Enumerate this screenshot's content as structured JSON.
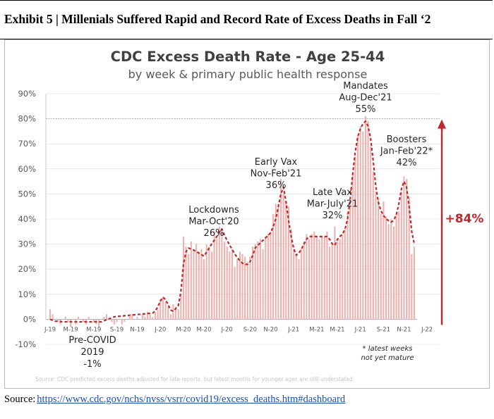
{
  "exhibit": {
    "title": "Exhibit 5 | Millenials Suffered Rapid and Record Rate of Excess Deaths in Fall ‘2"
  },
  "source": {
    "label": "Source:",
    "link_text": "https://www.cdc.gov/nchs/nvss/vsrr/covid19/excess_deaths.htm#dashboard"
  },
  "chart_data": {
    "type": "bar",
    "title": "CDC Excess Death Rate - Age 25-44",
    "subtitle": "by week & primary public health response",
    "ylim": [
      -10,
      90
    ],
    "yticks": [
      -10,
      0,
      10,
      20,
      30,
      40,
      50,
      60,
      70,
      80,
      90
    ],
    "ytick_format": "percent",
    "xtick_labels": [
      "J-19",
      "M-19",
      "M-19",
      "S-19",
      "N-19",
      "J-20",
      "M-20",
      "M-20",
      "J-20",
      "S-20",
      "N-20",
      "J-21",
      "M-21",
      "M-21",
      "J-21",
      "S-21",
      "N-21",
      "J-22"
    ],
    "xtick_weeks": [
      0,
      8,
      17,
      26,
      34,
      43,
      52,
      60,
      69,
      78,
      86,
      95,
      104,
      112,
      121,
      130,
      138,
      147
    ],
    "series": [
      {
        "name": "Weekly excess death rate (%)",
        "style": "bars",
        "values": [
          4,
          2,
          0,
          -1,
          -2,
          0,
          1,
          -1,
          -3,
          0,
          -2,
          1,
          0,
          -1,
          -2,
          1,
          0,
          -1,
          -2,
          -3,
          0,
          1,
          2,
          0,
          -1,
          -2,
          -1,
          0,
          -2,
          -1,
          0,
          1,
          2,
          0,
          1,
          0,
          2,
          1,
          3,
          2,
          1,
          3,
          4,
          8,
          9,
          7,
          5,
          2,
          6,
          5,
          4,
          10,
          33,
          29,
          26,
          31,
          28,
          30,
          27,
          28,
          24,
          30,
          29,
          27,
          35,
          32,
          37,
          36,
          31,
          29,
          27,
          28,
          21,
          24,
          27,
          26,
          25,
          23,
          25,
          29,
          30,
          31,
          32,
          28,
          33,
          34,
          35,
          42,
          46,
          46,
          56,
          50,
          47,
          45,
          36,
          28,
          26,
          24,
          28,
          31,
          34,
          32,
          34,
          35,
          33,
          32,
          33,
          33,
          35,
          29,
          30,
          37,
          31,
          32,
          34,
          36,
          43,
          46,
          58,
          65,
          73,
          77,
          75,
          81,
          79,
          69,
          59,
          51,
          48,
          42,
          47,
          41,
          38,
          40,
          37,
          42,
          43,
          51,
          57,
          56,
          49,
          26,
          29
        ]
      },
      {
        "name": "Trend",
        "style": "dashed-line",
        "values": [
          0,
          -0.4,
          -0.8,
          -0.8,
          -0.9,
          -1,
          -1,
          -1,
          -1,
          -1,
          -1,
          -1,
          -1,
          -1,
          -1,
          -1,
          -1,
          -1,
          -1,
          -1,
          -1,
          -0.6,
          -0.2,
          0.2,
          0.6,
          1,
          1.1,
          1.2,
          1.3,
          1.4,
          1.5,
          1.6,
          1.7,
          1.8,
          1.9,
          2,
          2.1,
          2.2,
          2.3,
          2.4,
          2.5,
          3.3,
          5,
          7.3,
          8.8,
          7.9,
          5.8,
          3.7,
          3.2,
          4.3,
          5.6,
          11,
          22,
          27,
          28.4,
          28,
          27.6,
          27,
          26.4,
          25.8,
          25.2,
          26.8,
          28.4,
          30,
          31.5,
          33,
          35,
          36,
          33.5,
          31.5,
          29.6,
          27.8,
          26.1,
          24.6,
          23.4,
          22.4,
          21.9,
          21.9,
          23,
          25.5,
          28.5,
          29.5,
          30.5,
          31.5,
          32.5,
          33.5,
          34.5,
          37,
          40,
          45,
          50,
          52.7,
          46.7,
          39.5,
          33,
          28.2,
          25.6,
          26.4,
          28,
          30,
          32,
          33,
          33,
          33,
          33,
          33,
          33,
          33,
          33,
          31.9,
          30.1,
          29.5,
          31.8,
          33,
          34,
          36,
          40,
          48,
          58,
          67,
          73,
          76,
          78,
          79,
          77,
          72,
          63,
          53,
          46.7,
          43.3,
          41.4,
          40.1,
          39.3,
          38.8,
          39.4,
          41.8,
          46,
          52,
          55,
          52.7,
          45,
          35,
          30
        ]
      }
    ],
    "reference_line": {
      "value": 80,
      "style": "dotted"
    },
    "annotations": [
      {
        "name": "pre-covid",
        "lines": [
          "Pre-COVID",
          "2019",
          "-1%"
        ]
      },
      {
        "name": "lockdowns",
        "lines": [
          "Lockdowns",
          "Mar-Oct'20",
          "26%"
        ]
      },
      {
        "name": "early-vax",
        "lines": [
          "Early Vax",
          "Nov-Feb'21",
          "36%"
        ]
      },
      {
        "name": "late-vax",
        "lines": [
          "Late Vax",
          "Mar-July'21",
          "32%"
        ]
      },
      {
        "name": "mandates",
        "lines": [
          "Mandates",
          "Aug-Dec'21",
          "55%"
        ]
      },
      {
        "name": "boosters",
        "lines": [
          "Boosters",
          "Jan-Feb'22*",
          "42%"
        ]
      }
    ],
    "footnote": [
      "* latest weeks",
      "not yet mature"
    ],
    "change_label": "+84%",
    "source_note": "Source: CDC predicted excess deaths adjusted for late reports, but latest months for younger ages are still understated",
    "colors": {
      "bars": "#ebb3b0",
      "trend": "#c0282b",
      "arrow": "#c0282b",
      "change_label": "#c0282b",
      "grid": "#d9d9d9",
      "axis_text": "#595959",
      "title": "#404040"
    }
  }
}
